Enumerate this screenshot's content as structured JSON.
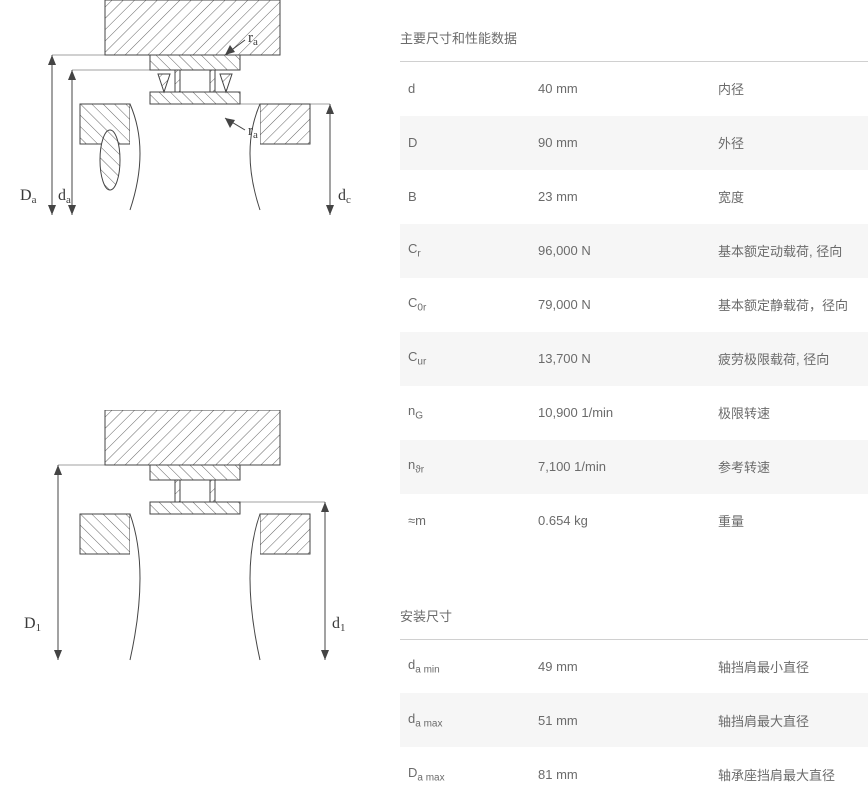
{
  "section1": {
    "title": "主要尺寸和性能数据",
    "rows": [
      {
        "symbol": "d",
        "sub": "",
        "value": "40 mm",
        "desc": "内径"
      },
      {
        "symbol": "D",
        "sub": "",
        "value": "90 mm",
        "desc": "外径"
      },
      {
        "symbol": "B",
        "sub": "",
        "value": "23 mm",
        "desc": "宽度"
      },
      {
        "symbol": "C",
        "sub": "r",
        "value": "96,000 N",
        "desc": "基本额定动载荷, 径向"
      },
      {
        "symbol": "C",
        "sub": "0r",
        "value": "79,000 N",
        "desc": "基本额定静载荷，径向"
      },
      {
        "symbol": "C",
        "sub": "ur",
        "value": "13,700 N",
        "desc": "疲劳极限载荷, 径向"
      },
      {
        "symbol": "n",
        "sub": "G",
        "value": "10,900 1/min",
        "desc": "极限转速"
      },
      {
        "symbol": "n",
        "sub": "ϑr",
        "value": "7,100 1/min",
        "desc": "参考转速"
      },
      {
        "symbol": "≈m",
        "sub": "",
        "value": "0.654 kg",
        "desc": "重量"
      }
    ]
  },
  "section2": {
    "title": "安装尺寸",
    "rows": [
      {
        "symbol": "d",
        "sub": "a min",
        "value": "49 mm",
        "desc": "轴挡肩最小直径"
      },
      {
        "symbol": "d",
        "sub": "a max",
        "value": "51 mm",
        "desc": "轴挡肩最大直径"
      },
      {
        "symbol": "D",
        "sub": "a max",
        "value": "81 mm",
        "desc": "轴承座挡肩最大直径"
      }
    ]
  },
  "diagram_labels": {
    "Da": "D",
    "Da_sub": "a",
    "da": "d",
    "da_sub": "a",
    "dc": "d",
    "dc_sub": "c",
    "ra": "r",
    "ra_sub": "a",
    "D1": "D",
    "D1_sub": "1",
    "d1": "d",
    "d1_sub": "1"
  },
  "colors": {
    "line": "#444444",
    "text": "#3a3a3a",
    "grey_fill": "#f2f2f2",
    "border_light": "#d0d0d0",
    "table_text": "#6b6b6b"
  }
}
